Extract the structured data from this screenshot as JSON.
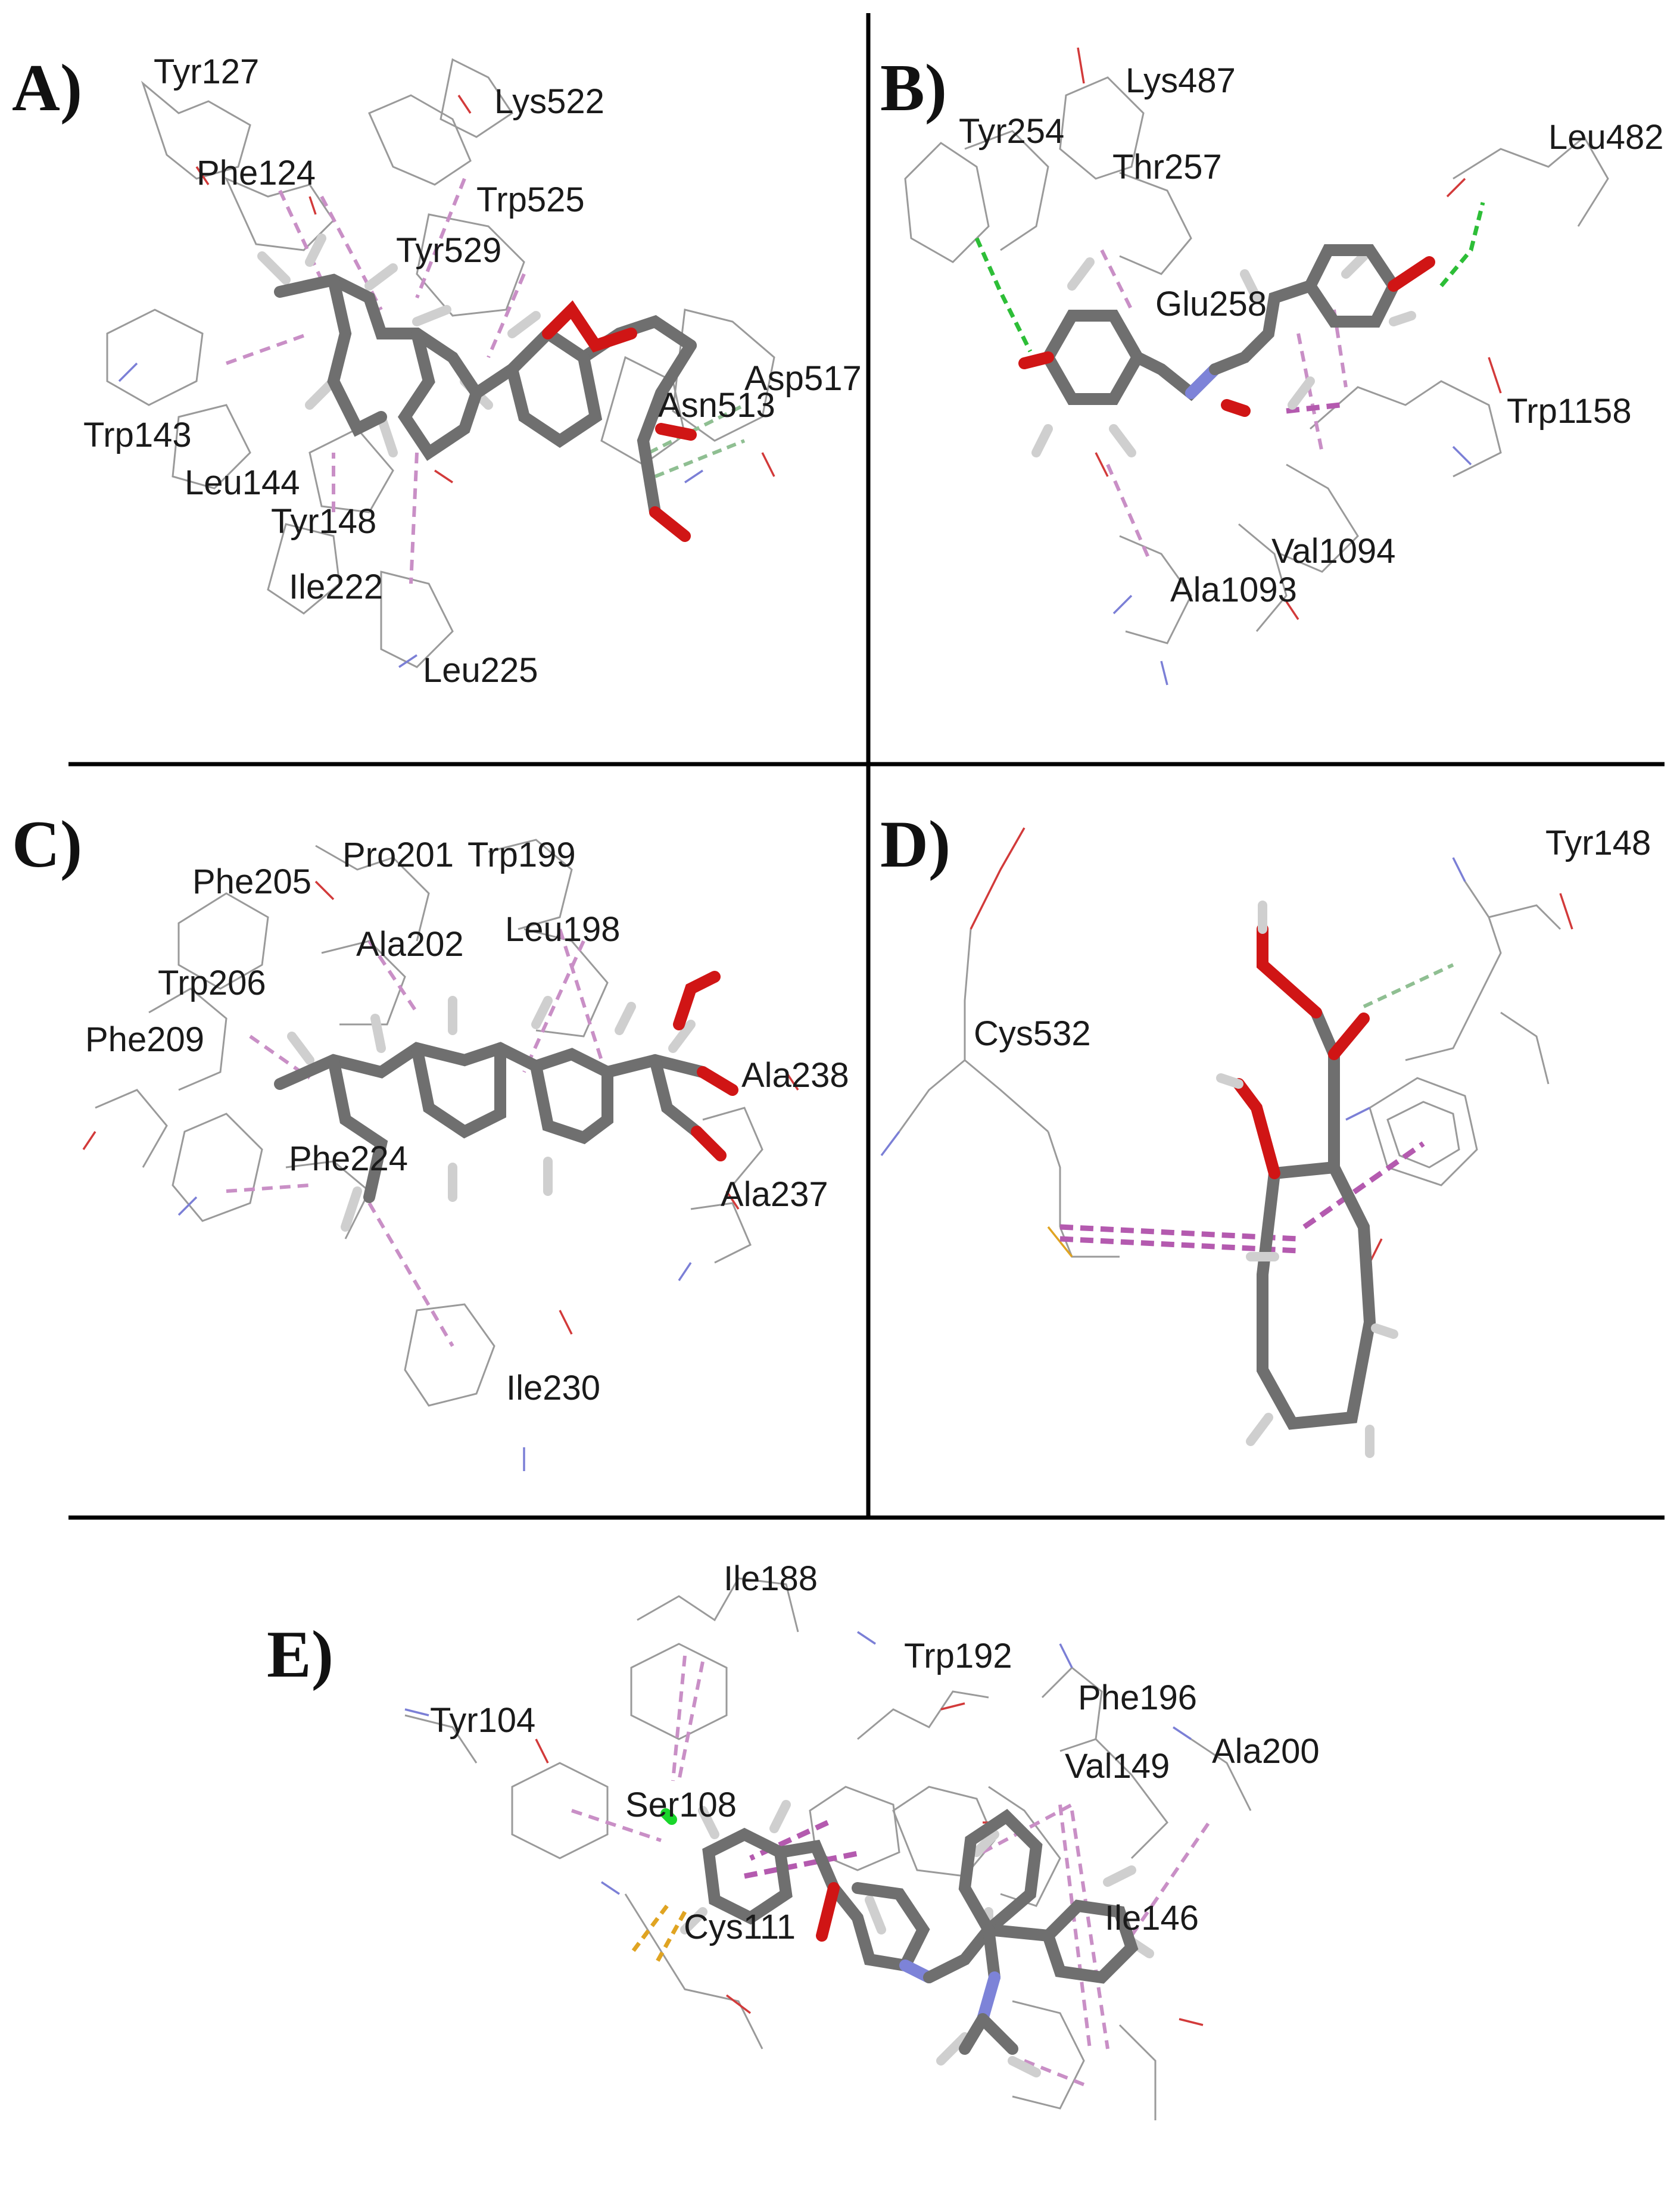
{
  "panels": [
    {
      "id": "A",
      "label": "A)",
      "residues": [
        {
          "key": "tyr127",
          "text": "Tyr127"
        },
        {
          "key": "lys522",
          "text": "Lys522"
        },
        {
          "key": "phe124",
          "text": "Phe124"
        },
        {
          "key": "trp525",
          "text": "Trp525"
        },
        {
          "key": "tyr529",
          "text": "Tyr529"
        },
        {
          "key": "asp517",
          "text": "Asp517"
        },
        {
          "key": "asn513",
          "text": "Asn513"
        },
        {
          "key": "trp143",
          "text": "Trp143"
        },
        {
          "key": "leu144",
          "text": "Leu144"
        },
        {
          "key": "tyr148",
          "text": "Tyr148"
        },
        {
          "key": "ile222",
          "text": "Ile222"
        },
        {
          "key": "leu225",
          "text": "Leu225"
        }
      ]
    },
    {
      "id": "B",
      "label": "B)",
      "residues": [
        {
          "key": "lys487",
          "text": "Lys487"
        },
        {
          "key": "tyr254",
          "text": "Tyr254"
        },
        {
          "key": "leu482",
          "text": "Leu482"
        },
        {
          "key": "thr257",
          "text": "Thr257"
        },
        {
          "key": "glu258",
          "text": "Glu258"
        },
        {
          "key": "trp1158",
          "text": "Trp1158"
        },
        {
          "key": "val1094",
          "text": "Val1094"
        },
        {
          "key": "ala1093",
          "text": "Ala1093"
        }
      ]
    },
    {
      "id": "C",
      "label": "C)",
      "residues": [
        {
          "key": "pro201",
          "text": "Pro201"
        },
        {
          "key": "trp199",
          "text": "Trp199"
        },
        {
          "key": "phe205",
          "text": "Phe205"
        },
        {
          "key": "leu198",
          "text": "Leu198"
        },
        {
          "key": "ala202",
          "text": "Ala202"
        },
        {
          "key": "trp206",
          "text": "Trp206"
        },
        {
          "key": "phe209",
          "text": "Phe209"
        },
        {
          "key": "ala238",
          "text": "Ala238"
        },
        {
          "key": "phe224",
          "text": "Phe224"
        },
        {
          "key": "ala237",
          "text": "Ala237"
        },
        {
          "key": "ile230",
          "text": "Ile230"
        }
      ]
    },
    {
      "id": "D",
      "label": "D)",
      "residues": [
        {
          "key": "tyr148",
          "text": "Tyr148"
        },
        {
          "key": "cys532",
          "text": "Cys532"
        }
      ]
    },
    {
      "id": "E",
      "label": "E)",
      "residues": [
        {
          "key": "ile188",
          "text": "Ile188"
        },
        {
          "key": "trp192",
          "text": "Trp192"
        },
        {
          "key": "tyr104",
          "text": "Tyr104"
        },
        {
          "key": "phe196",
          "text": "Phe196"
        },
        {
          "key": "val149",
          "text": "Val149"
        },
        {
          "key": "ala200",
          "text": "Ala200"
        },
        {
          "key": "ser108",
          "text": "Ser108"
        },
        {
          "key": "cys111",
          "text": "Cys111"
        },
        {
          "key": "ile146",
          "text": "Ile146"
        }
      ]
    }
  ],
  "colors": {
    "carbon": "#6f6f6f",
    "hydrogen": "#cfcfcf",
    "oxygen": "#d01515",
    "nitrogen": "#7d83d8",
    "pi_interaction": "#c98fc6",
    "hydrogen_bond": "#2dbe37",
    "carbon_hydrogen_bond": "#8fbf92",
    "sulfur_interaction": "#e0a422",
    "divider": "#000000"
  }
}
